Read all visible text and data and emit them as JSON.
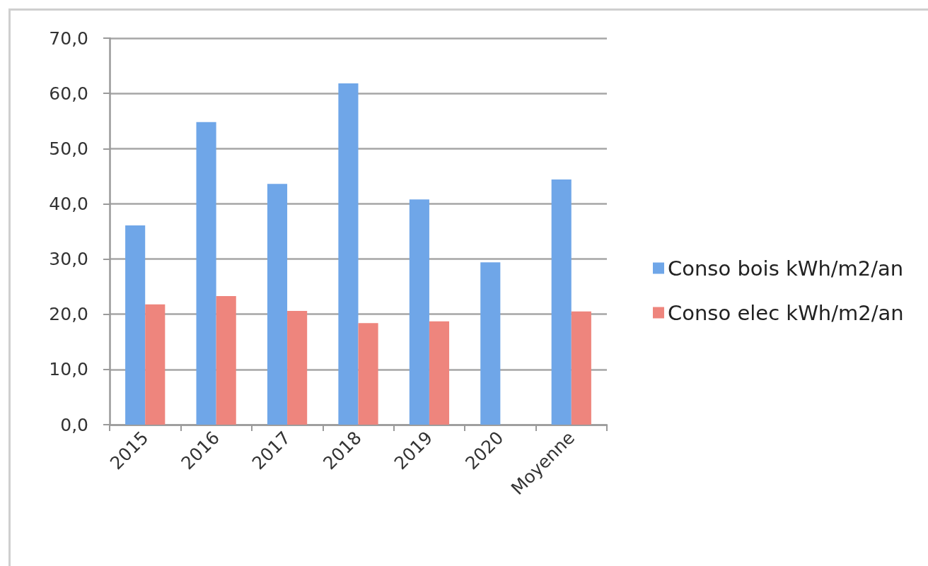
{
  "chart_data": {
    "type": "bar",
    "categories": [
      "2015",
      "2016",
      "2017",
      "2018",
      "2019",
      "2020",
      "Moyenne"
    ],
    "series": [
      {
        "name": "Conso bois kWh/m2/an",
        "color": "#6fa6e8",
        "values": [
          36.1,
          54.8,
          43.6,
          61.8,
          40.8,
          29.4,
          44.4
        ]
      },
      {
        "name": "Conso elec kWh/m2/an",
        "color": "#ee857d",
        "values": [
          21.8,
          23.3,
          20.6,
          18.4,
          18.7,
          null,
          20.5
        ]
      }
    ],
    "ylim": [
      0,
      70
    ],
    "yticks": [
      {
        "value": 0,
        "label": "0,0"
      },
      {
        "value": 10,
        "label": "10,0"
      },
      {
        "value": 20,
        "label": "20,0"
      },
      {
        "value": 30,
        "label": "30,0"
      },
      {
        "value": 40,
        "label": "40,0"
      },
      {
        "value": 50,
        "label": "50,0"
      },
      {
        "value": 60,
        "label": "60,0"
      },
      {
        "value": 70,
        "label": "70,0"
      }
    ],
    "grid": "y",
    "legend": "right"
  }
}
